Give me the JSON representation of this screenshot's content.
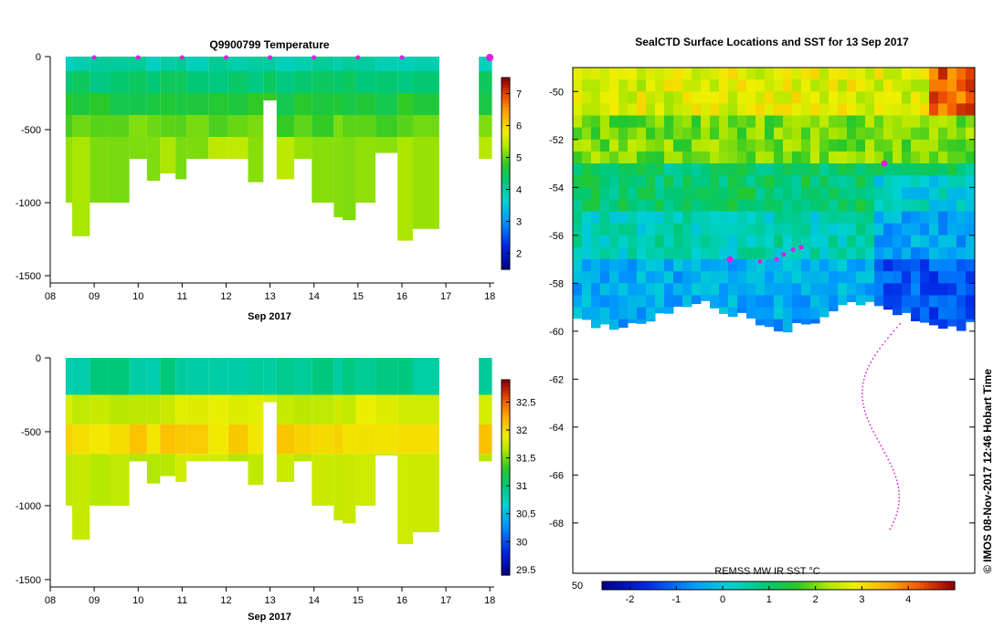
{
  "chart_data": [
    {
      "type": "heatmap",
      "panel": "temperature-section",
      "title": "Q9900799  Temperature",
      "xlabel": "Sep 2017",
      "ylabel": "",
      "x_ticks": [
        "08",
        "09",
        "10",
        "11",
        "12",
        "13",
        "14",
        "15",
        "16",
        "17",
        "18"
      ],
      "xlim": [
        8,
        18.1
      ],
      "y_ticks": [
        0,
        -500,
        -1000,
        -1500
      ],
      "ylim": [
        -1550,
        0
      ],
      "colorbar_ticks": [
        2,
        3,
        4,
        5,
        6,
        7
      ],
      "colorbar_range": [
        1.5,
        7.5
      ],
      "layers": [
        {
          "top": 0,
          "bottom": -100,
          "value": 3.9
        },
        {
          "top": -100,
          "bottom": -250,
          "value": 4.3
        },
        {
          "top": -250,
          "bottom": -400,
          "value": 4.7
        },
        {
          "top": -400,
          "bottom": -550,
          "value": 5.0
        },
        {
          "top": -550,
          "bottom": -1300,
          "value": 5.3
        }
      ],
      "profiles": [
        {
          "t": 8.35,
          "w": 0.15,
          "depth": 1000
        },
        {
          "t": 8.5,
          "w": 0.4,
          "depth": 1230
        },
        {
          "t": 8.9,
          "w": 0.45,
          "depth": 1000
        },
        {
          "t": 9.35,
          "w": 0.45,
          "depth": 1000
        },
        {
          "t": 9.8,
          "w": 0.4,
          "depth": 700
        },
        {
          "t": 10.2,
          "w": 0.3,
          "depth": 850
        },
        {
          "t": 10.5,
          "w": 0.35,
          "depth": 800
        },
        {
          "t": 10.85,
          "w": 0.25,
          "depth": 840
        },
        {
          "t": 11.1,
          "w": 0.5,
          "depth": 700
        },
        {
          "t": 11.6,
          "w": 0.45,
          "depth": 700
        },
        {
          "t": 12.05,
          "w": 0.45,
          "depth": 700
        },
        {
          "t": 12.5,
          "w": 0.35,
          "depth": 860
        },
        {
          "t": 12.85,
          "w": 0.3,
          "depth": 300
        },
        {
          "t": 13.15,
          "w": 0.4,
          "depth": 840
        },
        {
          "t": 13.55,
          "w": 0.4,
          "depth": 700
        },
        {
          "t": 13.95,
          "w": 0.5,
          "depth": 1000
        },
        {
          "t": 14.45,
          "w": 0.2,
          "depth": 1100
        },
        {
          "t": 14.65,
          "w": 0.3,
          "depth": 1120
        },
        {
          "t": 14.95,
          "w": 0.45,
          "depth": 1000
        },
        {
          "t": 15.4,
          "w": 0.5,
          "depth": 660
        },
        {
          "t": 15.9,
          "w": 0.35,
          "depth": 1260
        },
        {
          "t": 16.25,
          "w": 0.6,
          "depth": 1180
        },
        {
          "t": 17.75,
          "w": 0.3,
          "depth": 700
        }
      ],
      "markers": [
        9.0,
        10.0,
        11.0,
        12.0,
        13.0,
        14.0,
        15.0,
        16.0,
        18.0
      ]
    },
    {
      "type": "heatmap",
      "panel": "salinity-section",
      "title": "",
      "xlabel": "Sep 2017",
      "ylabel": "",
      "x_ticks": [
        "08",
        "09",
        "10",
        "11",
        "12",
        "13",
        "14",
        "15",
        "16",
        "17",
        "18"
      ],
      "xlim": [
        8,
        18.1
      ],
      "y_ticks": [
        0,
        -500,
        -1000,
        -1500
      ],
      "ylim": [
        -1550,
        0
      ],
      "colorbar_ticks": [
        29.5,
        30,
        30.5,
        31,
        31.5,
        32,
        32.5
      ],
      "colorbar_range": [
        29.4,
        32.9
      ],
      "layers": [
        {
          "top": 0,
          "bottom": -250,
          "value": 30.9
        },
        {
          "top": -250,
          "bottom": -450,
          "value": 31.8
        },
        {
          "top": -450,
          "bottom": -650,
          "value": 32.05
        },
        {
          "top": -650,
          "bottom": -1300,
          "value": 31.75
        }
      ],
      "profiles": "same-as-temperature-section"
    },
    {
      "type": "heatmap",
      "panel": "surface-map",
      "title": "SealCTD Surface Locations and SST for 13 Sep 2017",
      "xlabel": "",
      "ylabel": "",
      "y_ticks": [
        -50,
        -52,
        -54,
        -56,
        -58,
        -60,
        -62,
        -64,
        -66,
        -68
      ],
      "ylim": [
        -70.1,
        -49.0
      ],
      "colorbar_label": "REMSS MW IR SST °C",
      "colorbar_left_label": "50",
      "colorbar_ticks": [
        -2,
        -1,
        0,
        1,
        2,
        3,
        4
      ],
      "colorbar_range": [
        -2.6,
        5.0
      ],
      "sst_bands": [
        {
          "lat_from": -49.0,
          "lat_to": -51.0,
          "sst": 2.7
        },
        {
          "lat_from": -51.0,
          "lat_to": -52.6,
          "sst": 2.0
        },
        {
          "lat_from": -52.6,
          "lat_to": -55.0,
          "sst": 1.0
        },
        {
          "lat_from": -55.0,
          "lat_to": -57.0,
          "sst": 0.4
        },
        {
          "lat_from": -57.0,
          "lat_to": -59.5,
          "sst": -0.4
        }
      ],
      "surface_points_lat": [
        -57.0,
        -57.1,
        -57.0,
        -56.8,
        -56.6,
        -56.5,
        -53.0
      ]
    }
  ],
  "credit": "© IMOS 08-Nov-2017 12:46 Hobart Time"
}
